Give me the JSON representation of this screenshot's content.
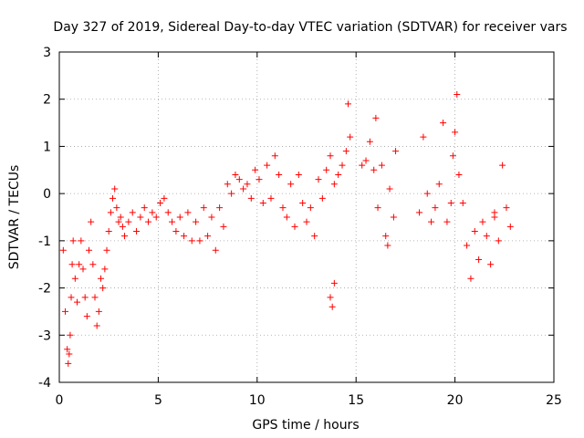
{
  "chart_data": {
    "type": "scatter",
    "title": "Day 327 of 2019, Sidereal Day-to-day VTEC variation (SDTVAR) for receiver vars",
    "xlabel": "GPS time / hours",
    "ylabel": "SDTVAR / TECUs",
    "xlim": [
      0,
      25
    ],
    "ylim": [
      -4,
      3
    ],
    "xticks": [
      "0",
      "5",
      "10",
      "15",
      "20",
      "25"
    ],
    "yticks": [
      "-4",
      "-3",
      "-2",
      "-1",
      "0",
      "1",
      "2",
      "3"
    ],
    "grid": true,
    "marker": "+",
    "color": "#ff0000",
    "series": [
      {
        "name": "SDTVAR",
        "x": [
          0.2,
          0.3,
          0.4,
          0.45,
          0.5,
          0.55,
          0.6,
          0.65,
          0.7,
          0.8,
          0.9,
          1.0,
          1.1,
          1.2,
          1.3,
          1.4,
          1.5,
          1.6,
          1.7,
          1.8,
          1.9,
          2.0,
          2.1,
          2.2,
          2.3,
          2.4,
          2.5,
          2.6,
          2.7,
          2.8,
          2.9,
          3.0,
          3.1,
          3.2,
          3.3,
          3.5,
          3.7,
          3.9,
          4.1,
          4.3,
          4.5,
          4.7,
          4.9,
          5.1,
          5.3,
          5.5,
          5.7,
          5.9,
          6.1,
          6.3,
          6.5,
          6.7,
          6.9,
          7.1,
          7.3,
          7.5,
          7.7,
          7.9,
          8.1,
          8.3,
          8.5,
          8.7,
          8.9,
          9.1,
          9.3,
          9.5,
          9.7,
          9.9,
          10.1,
          10.3,
          10.5,
          10.7,
          10.9,
          11.1,
          11.3,
          11.5,
          11.7,
          11.9,
          12.1,
          12.3,
          12.5,
          12.7,
          12.9,
          13.1,
          13.3,
          13.5,
          13.7,
          13.9,
          14.1,
          14.3,
          14.5,
          14.7,
          15.5,
          15.7,
          15.9,
          16.1,
          16.3,
          16.5,
          16.7,
          16.9,
          18.2,
          18.4,
          18.6,
          18.8,
          19.0,
          19.2,
          19.4,
          19.8,
          19.9,
          20.0,
          20.1,
          20.2,
          20.4,
          20.6,
          20.8,
          21.0,
          21.2,
          21.4,
          21.6,
          21.8,
          22.0,
          22.2,
          22.4,
          22.6,
          22.8,
          13.7,
          13.8,
          13.9,
          14.6,
          15.3,
          16.0,
          17.0,
          16.6,
          19.6,
          22.0
        ],
        "y": [
          -1.2,
          -2.5,
          -3.3,
          -3.6,
          -3.4,
          -3.0,
          -2.2,
          -1.5,
          -1.0,
          -1.8,
          -2.3,
          -1.5,
          -1.0,
          -1.6,
          -2.2,
          -2.6,
          -1.2,
          -0.6,
          -1.5,
          -2.2,
          -2.8,
          -2.5,
          -1.8,
          -2.0,
          -1.6,
          -1.2,
          -0.8,
          -0.4,
          -0.1,
          0.1,
          -0.3,
          -0.6,
          -0.5,
          -0.7,
          -0.9,
          -0.6,
          -0.4,
          -0.8,
          -0.5,
          -0.3,
          -0.6,
          -0.4,
          -0.5,
          -0.2,
          -0.1,
          -0.4,
          -0.6,
          -0.8,
          -0.5,
          -0.9,
          -0.4,
          -1.0,
          -0.6,
          -1.0,
          -0.3,
          -0.9,
          -0.5,
          -1.2,
          -0.3,
          -0.7,
          0.2,
          0.0,
          0.4,
          0.3,
          0.1,
          0.2,
          -0.1,
          0.5,
          0.3,
          -0.2,
          0.6,
          -0.1,
          0.8,
          0.4,
          -0.3,
          -0.5,
          0.2,
          -0.7,
          0.4,
          -0.2,
          -0.6,
          -0.3,
          -0.9,
          0.3,
          -0.1,
          0.5,
          0.8,
          0.2,
          0.4,
          0.6,
          0.9,
          1.2,
          0.7,
          1.1,
          0.5,
          -0.3,
          0.6,
          -0.9,
          0.1,
          -0.5,
          -0.4,
          1.2,
          0.0,
          -0.6,
          -0.3,
          0.2,
          1.5,
          -0.2,
          0.8,
          1.3,
          2.1,
          0.4,
          -0.2,
          -1.1,
          -1.8,
          -0.8,
          -1.4,
          -0.6,
          -0.9,
          -1.5,
          -0.4,
          -1.0,
          0.6,
          -0.3,
          -0.7,
          -2.2,
          -2.4,
          -1.9,
          1.9,
          0.6,
          1.6,
          0.9,
          -1.1,
          -0.6,
          -0.5
        ]
      }
    ]
  }
}
